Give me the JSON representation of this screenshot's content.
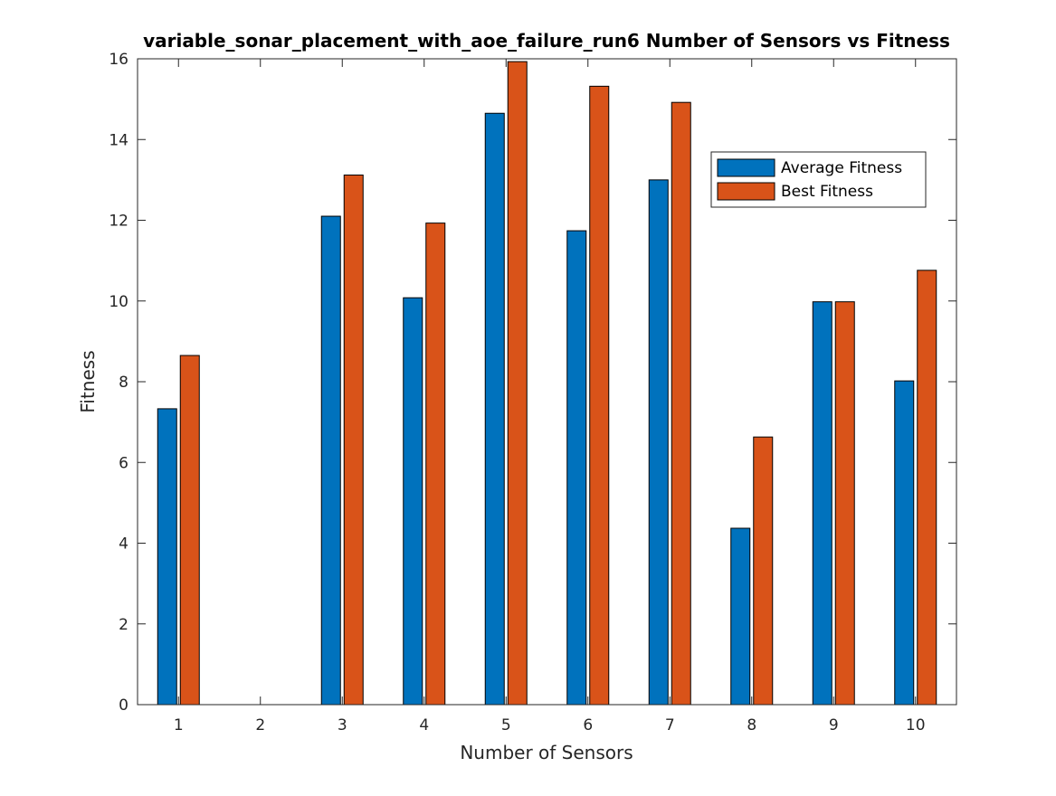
{
  "chart_data": {
    "type": "bar",
    "title": "variable_sonar_placement_with_aoe_failure_run6 Number of Sensors vs Fitness",
    "xlabel": "Number of Sensors",
    "ylabel": "Fitness",
    "categories": [
      "1",
      "2",
      "3",
      "4",
      "5",
      "6",
      "7",
      "8",
      "9",
      "10"
    ],
    "ylim": [
      0,
      16
    ],
    "yticks": [
      0,
      2,
      4,
      6,
      8,
      10,
      12,
      14,
      16
    ],
    "grid": false,
    "legend_position": "top-right",
    "series": [
      {
        "name": "Average Fitness",
        "color": "#0072BD",
        "values": [
          7.33,
          0,
          12.1,
          10.08,
          14.65,
          11.74,
          13.0,
          4.37,
          9.98,
          8.02
        ]
      },
      {
        "name": "Best Fitness",
        "color": "#D95319",
        "values": [
          8.65,
          0,
          13.12,
          11.93,
          15.93,
          15.32,
          14.92,
          6.63,
          9.98,
          10.76
        ]
      }
    ]
  }
}
